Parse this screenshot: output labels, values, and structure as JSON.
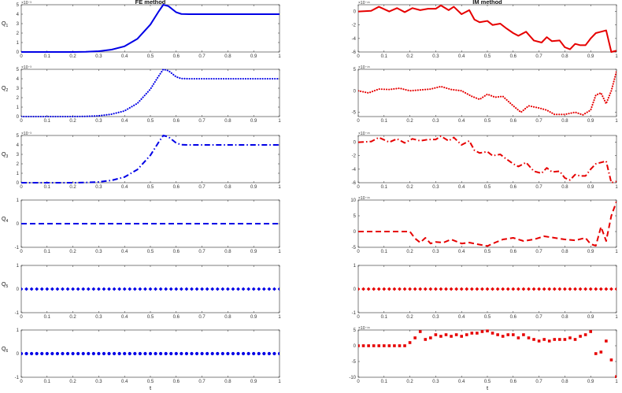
{
  "chart_data": [
    {
      "type": "line",
      "column": "left",
      "title": "FE method",
      "ylabel": {
        "main": "Q",
        "sub": "1"
      },
      "xlabel": "",
      "exponent": "×10⁻³",
      "color": "#0000e6",
      "style": "solid",
      "ylim": [
        0,
        5
      ],
      "yticks": [
        "0",
        "1",
        "2",
        "3",
        "4",
        "5"
      ],
      "xticks": [
        "0",
        "0.1",
        "0.2",
        "0.3",
        "0.4",
        "0.5",
        "0.6",
        "0.7",
        "0.8",
        "0.9",
        "1"
      ],
      "x": [
        0,
        0.1,
        0.2,
        0.25,
        0.3,
        0.35,
        0.4,
        0.45,
        0.5,
        0.53,
        0.55,
        0.57,
        0.6,
        0.62,
        0.65,
        0.7,
        0.8,
        0.9,
        1
      ],
      "y": [
        0,
        0,
        0,
        0.02,
        0.08,
        0.25,
        0.6,
        1.4,
        2.9,
        4.2,
        5.0,
        4.85,
        4.2,
        4.02,
        4.0,
        4.0,
        4.0,
        4.0,
        4.0
      ]
    },
    {
      "type": "line",
      "column": "left",
      "title": "",
      "ylabel": {
        "main": "Q",
        "sub": "2"
      },
      "xlabel": "",
      "exponent": "×10⁻³",
      "color": "#0000e6",
      "style": "dotted",
      "ylim": [
        0,
        5
      ],
      "yticks": [
        "0",
        "1",
        "2",
        "3",
        "4",
        "5"
      ],
      "xticks": [
        "0",
        "0.1",
        "0.2",
        "0.3",
        "0.4",
        "0.5",
        "0.6",
        "0.7",
        "0.8",
        "0.9",
        "1"
      ],
      "x": [
        0,
        0.1,
        0.2,
        0.25,
        0.3,
        0.35,
        0.4,
        0.45,
        0.5,
        0.53,
        0.55,
        0.57,
        0.6,
        0.62,
        0.65,
        0.7,
        0.8,
        0.9,
        1
      ],
      "y": [
        0,
        0,
        0,
        0.02,
        0.08,
        0.25,
        0.6,
        1.4,
        2.9,
        4.2,
        5.0,
        4.85,
        4.2,
        4.02,
        4.0,
        4.0,
        4.0,
        4.0,
        4.0
      ]
    },
    {
      "type": "line",
      "column": "left",
      "title": "",
      "ylabel": {
        "main": "Q",
        "sub": "3"
      },
      "xlabel": "",
      "exponent": "×10⁻³",
      "color": "#0000e6",
      "style": "dashdot",
      "ylim": [
        0,
        5
      ],
      "yticks": [
        "0",
        "1",
        "2",
        "3",
        "4",
        "5"
      ],
      "xticks": [
        "0",
        "0.1",
        "0.2",
        "0.3",
        "0.4",
        "0.5",
        "0.6",
        "0.7",
        "0.8",
        "0.9",
        "1"
      ],
      "x": [
        0,
        0.1,
        0.2,
        0.25,
        0.3,
        0.35,
        0.4,
        0.45,
        0.5,
        0.53,
        0.55,
        0.57,
        0.6,
        0.62,
        0.65,
        0.7,
        0.8,
        0.9,
        1
      ],
      "y": [
        0,
        0,
        0,
        0.02,
        0.08,
        0.25,
        0.6,
        1.4,
        2.9,
        4.2,
        5.0,
        4.85,
        4.2,
        4.02,
        4.0,
        4.0,
        4.0,
        4.0,
        4.0
      ]
    },
    {
      "type": "line",
      "column": "left",
      "title": "",
      "ylabel": {
        "main": "Q",
        "sub": "4"
      },
      "xlabel": "",
      "exponent": "",
      "color": "#0000e6",
      "style": "dashed",
      "ylim": [
        -1,
        1
      ],
      "yticks": [
        "-1",
        "0",
        "1"
      ],
      "xticks": [
        "0",
        "0.1",
        "0.2",
        "0.3",
        "0.4",
        "0.5",
        "0.6",
        "0.7",
        "0.8",
        "0.9",
        "1"
      ],
      "x": [
        0,
        1
      ],
      "y": [
        0,
        0
      ]
    },
    {
      "type": "scatter",
      "column": "left",
      "title": "",
      "ylabel": {
        "main": "Q",
        "sub": "5"
      },
      "xlabel": "",
      "exponent": "",
      "color": "#0000e6",
      "style": "diamond",
      "ylim": [
        -1,
        1
      ],
      "yticks": [
        "-1",
        "0",
        "1"
      ],
      "xticks": [
        "0",
        "0.1",
        "0.2",
        "0.3",
        "0.4",
        "0.5",
        "0.6",
        "0.7",
        "0.8",
        "0.9",
        "1"
      ],
      "x": [
        0,
        0.02,
        0.04,
        0.06,
        0.08,
        0.1,
        0.12,
        0.14,
        0.16,
        0.18,
        0.2,
        0.22,
        0.24,
        0.26,
        0.28,
        0.3,
        0.32,
        0.34,
        0.36,
        0.38,
        0.4,
        0.42,
        0.44,
        0.46,
        0.48,
        0.5,
        0.52,
        0.54,
        0.56,
        0.58,
        0.6,
        0.62,
        0.64,
        0.66,
        0.68,
        0.7,
        0.72,
        0.74,
        0.76,
        0.78,
        0.8,
        0.82,
        0.84,
        0.86,
        0.88,
        0.9,
        0.92,
        0.94,
        0.96,
        0.98,
        1
      ],
      "y": [
        0,
        0,
        0,
        0,
        0,
        0,
        0,
        0,
        0,
        0,
        0,
        0,
        0,
        0,
        0,
        0,
        0,
        0,
        0,
        0,
        0,
        0,
        0,
        0,
        0,
        0,
        0,
        0,
        0,
        0,
        0,
        0,
        0,
        0,
        0,
        0,
        0,
        0,
        0,
        0,
        0,
        0,
        0,
        0,
        0,
        0,
        0,
        0,
        0,
        0,
        0
      ]
    },
    {
      "type": "scatter",
      "column": "left",
      "title": "",
      "ylabel": {
        "main": "Q",
        "sub": "6"
      },
      "xlabel": "t",
      "exponent": "",
      "color": "#0000e6",
      "style": "circle",
      "ylim": [
        -1,
        1
      ],
      "yticks": [
        "-1",
        "0",
        "1"
      ],
      "xticks": [
        "0",
        "0.1",
        "0.2",
        "0.3",
        "0.4",
        "0.5",
        "0.6",
        "0.7",
        "0.8",
        "0.9",
        "1"
      ],
      "x": [
        0,
        0.02,
        0.04,
        0.06,
        0.08,
        0.1,
        0.12,
        0.14,
        0.16,
        0.18,
        0.2,
        0.22,
        0.24,
        0.26,
        0.28,
        0.3,
        0.32,
        0.34,
        0.36,
        0.38,
        0.4,
        0.42,
        0.44,
        0.46,
        0.48,
        0.5,
        0.52,
        0.54,
        0.56,
        0.58,
        0.6,
        0.62,
        0.64,
        0.66,
        0.68,
        0.7,
        0.72,
        0.74,
        0.76,
        0.78,
        0.8,
        0.82,
        0.84,
        0.86,
        0.88,
        0.9,
        0.92,
        0.94,
        0.96,
        0.98,
        1
      ],
      "y": [
        0,
        0,
        0,
        0,
        0,
        0,
        0,
        0,
        0,
        0,
        0,
        0,
        0,
        0,
        0,
        0,
        0,
        0,
        0,
        0,
        0,
        0,
        0,
        0,
        0,
        0,
        0,
        0,
        0,
        0,
        0,
        0,
        0,
        0,
        0,
        0,
        0,
        0,
        0,
        0,
        0,
        0,
        0,
        0,
        0,
        0,
        0,
        0,
        0,
        0,
        0
      ]
    },
    {
      "type": "line",
      "column": "right",
      "title": "IM method",
      "ylabel": {
        "main": "",
        "sub": ""
      },
      "xlabel": "",
      "exponent": "×10⁻¹⁵",
      "color": "#e60000",
      "style": "solid",
      "ylim": [
        -6,
        1
      ],
      "yticks": [
        "-6",
        "-4",
        "-2",
        "0"
      ],
      "xticks": [
        "0",
        "0.1",
        "0.2",
        "0.3",
        "0.4",
        "0.5",
        "0.6",
        "0.7",
        "0.8",
        "0.9",
        "1"
      ],
      "x": [
        0,
        0.05,
        0.08,
        0.12,
        0.15,
        0.18,
        0.21,
        0.24,
        0.27,
        0.3,
        0.32,
        0.35,
        0.37,
        0.4,
        0.43,
        0.45,
        0.47,
        0.5,
        0.52,
        0.55,
        0.57,
        0.6,
        0.62,
        0.65,
        0.68,
        0.71,
        0.73,
        0.75,
        0.78,
        0.8,
        0.82,
        0.84,
        0.86,
        0.88,
        0.9,
        0.92,
        0.94,
        0.96,
        0.98,
        1
      ],
      "y": [
        0,
        0.1,
        0.7,
        0,
        0.5,
        -0.1,
        0.5,
        0.2,
        0.4,
        0.4,
        0.9,
        0.2,
        0.7,
        -0.4,
        0.2,
        -1.2,
        -1.6,
        -1.4,
        -2.0,
        -1.8,
        -2.4,
        -3.2,
        -3.6,
        -3.0,
        -4.3,
        -4.6,
        -3.8,
        -4.4,
        -4.3,
        -5.3,
        -5.6,
        -4.8,
        -5.0,
        -5.0,
        -4.0,
        -3.2,
        -3.0,
        -2.8,
        -6.0,
        -5.8
      ]
    },
    {
      "type": "line",
      "column": "right",
      "title": "",
      "ylabel": {
        "main": "",
        "sub": ""
      },
      "xlabel": "",
      "exponent": "×10⁻¹⁵",
      "color": "#e60000",
      "style": "dotted",
      "ylim": [
        -6,
        5
      ],
      "yticks": [
        "-5",
        "0",
        "5"
      ],
      "xticks": [
        "0",
        "0.1",
        "0.2",
        "0.3",
        "0.4",
        "0.5",
        "0.6",
        "0.7",
        "0.8",
        "0.9",
        "1"
      ],
      "x": [
        0,
        0.04,
        0.08,
        0.12,
        0.16,
        0.2,
        0.24,
        0.28,
        0.32,
        0.36,
        0.4,
        0.44,
        0.47,
        0.5,
        0.53,
        0.56,
        0.6,
        0.63,
        0.66,
        0.7,
        0.73,
        0.76,
        0.8,
        0.84,
        0.87,
        0.9,
        0.92,
        0.94,
        0.96,
        0.98,
        1
      ],
      "y": [
        0,
        -0.5,
        0.4,
        0.3,
        0.6,
        0,
        0.2,
        0.4,
        1.0,
        0.3,
        0,
        -1.3,
        -2.0,
        -0.8,
        -1.5,
        -1.3,
        -3.5,
        -5.0,
        -3.5,
        -4.0,
        -4.5,
        -5.5,
        -5.5,
        -5.0,
        -5.6,
        -4.5,
        -1.0,
        -0.5,
        -3.0,
        0,
        4.5
      ]
    },
    {
      "type": "line",
      "column": "right",
      "title": "",
      "ylabel": {
        "main": "",
        "sub": ""
      },
      "xlabel": "",
      "exponent": "×10⁻¹⁵",
      "color": "#e60000",
      "style": "dashdot",
      "ylim": [
        -6,
        1
      ],
      "yticks": [
        "-6",
        "-4",
        "-2",
        "0"
      ],
      "xticks": [
        "0",
        "0.1",
        "0.2",
        "0.3",
        "0.4",
        "0.5",
        "0.6",
        "0.7",
        "0.8",
        "0.9",
        "1"
      ],
      "x": [
        0,
        0.05,
        0.08,
        0.12,
        0.15,
        0.18,
        0.21,
        0.24,
        0.27,
        0.3,
        0.32,
        0.35,
        0.37,
        0.4,
        0.43,
        0.45,
        0.47,
        0.5,
        0.52,
        0.55,
        0.57,
        0.6,
        0.62,
        0.65,
        0.68,
        0.71,
        0.73,
        0.75,
        0.78,
        0.8,
        0.82,
        0.84,
        0.86,
        0.88,
        0.9,
        0.92,
        0.94,
        0.96,
        0.98,
        1
      ],
      "y": [
        0,
        0.1,
        0.7,
        0,
        0.5,
        -0.1,
        0.5,
        0.2,
        0.4,
        0.4,
        0.9,
        0.2,
        0.7,
        -0.4,
        0.2,
        -1.2,
        -1.6,
        -1.4,
        -2.0,
        -1.8,
        -2.4,
        -3.2,
        -3.6,
        -3.0,
        -4.3,
        -4.6,
        -3.8,
        -4.4,
        -4.3,
        -5.3,
        -5.6,
        -4.8,
        -5.0,
        -5.0,
        -4.0,
        -3.2,
        -3.0,
        -2.8,
        -6.0,
        -5.8
      ]
    },
    {
      "type": "line",
      "column": "right",
      "title": "",
      "ylabel": {
        "main": "",
        "sub": ""
      },
      "xlabel": "",
      "exponent": "×10⁻¹⁶",
      "color": "#e60000",
      "style": "dashed",
      "ylim": [
        -5,
        10
      ],
      "yticks": [
        "-5",
        "0",
        "5",
        "10"
      ],
      "xticks": [
        "0",
        "0.1",
        "0.2",
        "0.3",
        "0.4",
        "0.5",
        "0.6",
        "0.7",
        "0.8",
        "0.9",
        "1"
      ],
      "x": [
        0,
        0.05,
        0.1,
        0.15,
        0.2,
        0.22,
        0.24,
        0.26,
        0.28,
        0.3,
        0.33,
        0.36,
        0.4,
        0.43,
        0.46,
        0.5,
        0.53,
        0.56,
        0.6,
        0.64,
        0.68,
        0.72,
        0.76,
        0.8,
        0.84,
        0.88,
        0.9,
        0.92,
        0.94,
        0.96,
        0.98,
        1
      ],
      "y": [
        0,
        0,
        0,
        0,
        0,
        -2.2,
        -3.5,
        -2.0,
        -3.8,
        -3.3,
        -3.5,
        -2.5,
        -3.8,
        -3.5,
        -4.0,
        -4.6,
        -3.5,
        -2.5,
        -2.0,
        -3.0,
        -2.5,
        -1.5,
        -2.0,
        -2.5,
        -2.8,
        -2.0,
        -4.0,
        -4.5,
        1.5,
        -3.0,
        5.0,
        9.5
      ]
    },
    {
      "type": "scatter",
      "column": "right",
      "title": "",
      "ylabel": {
        "main": "",
        "sub": ""
      },
      "xlabel": "",
      "exponent": "",
      "color": "#e60000",
      "style": "diamond",
      "ylim": [
        -1,
        1
      ],
      "yticks": [
        "-1",
        "0",
        "1"
      ],
      "xticks": [
        "0",
        "0.1",
        "0.2",
        "0.3",
        "0.4",
        "0.5",
        "0.6",
        "0.7",
        "0.8",
        "0.9",
        "1"
      ],
      "x": [
        0,
        0.02,
        0.04,
        0.06,
        0.08,
        0.1,
        0.12,
        0.14,
        0.16,
        0.18,
        0.2,
        0.22,
        0.24,
        0.26,
        0.28,
        0.3,
        0.32,
        0.34,
        0.36,
        0.38,
        0.4,
        0.42,
        0.44,
        0.46,
        0.48,
        0.5,
        0.52,
        0.54,
        0.56,
        0.58,
        0.6,
        0.62,
        0.64,
        0.66,
        0.68,
        0.7,
        0.72,
        0.74,
        0.76,
        0.78,
        0.8,
        0.82,
        0.84,
        0.86,
        0.88,
        0.9,
        0.92,
        0.94,
        0.96,
        0.98,
        1
      ],
      "y": [
        0,
        0,
        0,
        0,
        0,
        0,
        0,
        0,
        0,
        0,
        0,
        0,
        0,
        0,
        0,
        0,
        0,
        0,
        0,
        0,
        0,
        0,
        0,
        0,
        0,
        0,
        0,
        0,
        0,
        0,
        0,
        0,
        0,
        0,
        0,
        0,
        0,
        0,
        0,
        0,
        0,
        0,
        0,
        0,
        0,
        0,
        0,
        0,
        0,
        0,
        0
      ]
    },
    {
      "type": "scatter",
      "column": "right",
      "title": "",
      "ylabel": {
        "main": "",
        "sub": ""
      },
      "xlabel": "t",
      "exponent": "×10⁻¹⁶",
      "color": "#e60000",
      "style": "square",
      "ylim": [
        -10,
        5
      ],
      "yticks": [
        "-10",
        "-5",
        "0",
        "5"
      ],
      "xticks": [
        "0",
        "0.1",
        "0.2",
        "0.3",
        "0.4",
        "0.5",
        "0.6",
        "0.7",
        "0.8",
        "0.9",
        "1"
      ],
      "x": [
        0,
        0.02,
        0.04,
        0.06,
        0.08,
        0.1,
        0.12,
        0.14,
        0.16,
        0.18,
        0.2,
        0.22,
        0.24,
        0.26,
        0.28,
        0.3,
        0.32,
        0.34,
        0.36,
        0.38,
        0.4,
        0.42,
        0.44,
        0.46,
        0.48,
        0.5,
        0.52,
        0.54,
        0.56,
        0.58,
        0.6,
        0.62,
        0.64,
        0.66,
        0.68,
        0.7,
        0.72,
        0.74,
        0.76,
        0.78,
        0.8,
        0.82,
        0.84,
        0.86,
        0.88,
        0.9,
        0.92,
        0.94,
        0.96,
        0.98,
        1
      ],
      "y": [
        0,
        0,
        0,
        0,
        0,
        0,
        0,
        0,
        0,
        0,
        1.0,
        2.5,
        4.5,
        2.0,
        2.5,
        3.5,
        3.0,
        3.5,
        3.0,
        3.5,
        3.0,
        3.5,
        4.0,
        4.0,
        4.5,
        4.7,
        4.0,
        3.5,
        3.0,
        3.5,
        3.5,
        2.5,
        3.5,
        2.5,
        2.0,
        1.5,
        2.0,
        1.5,
        2.0,
        2.0,
        2.0,
        2.5,
        2.0,
        3.0,
        3.5,
        4.5,
        -2.5,
        -2.0,
        1.5,
        -4.5,
        -9.8
      ]
    }
  ]
}
